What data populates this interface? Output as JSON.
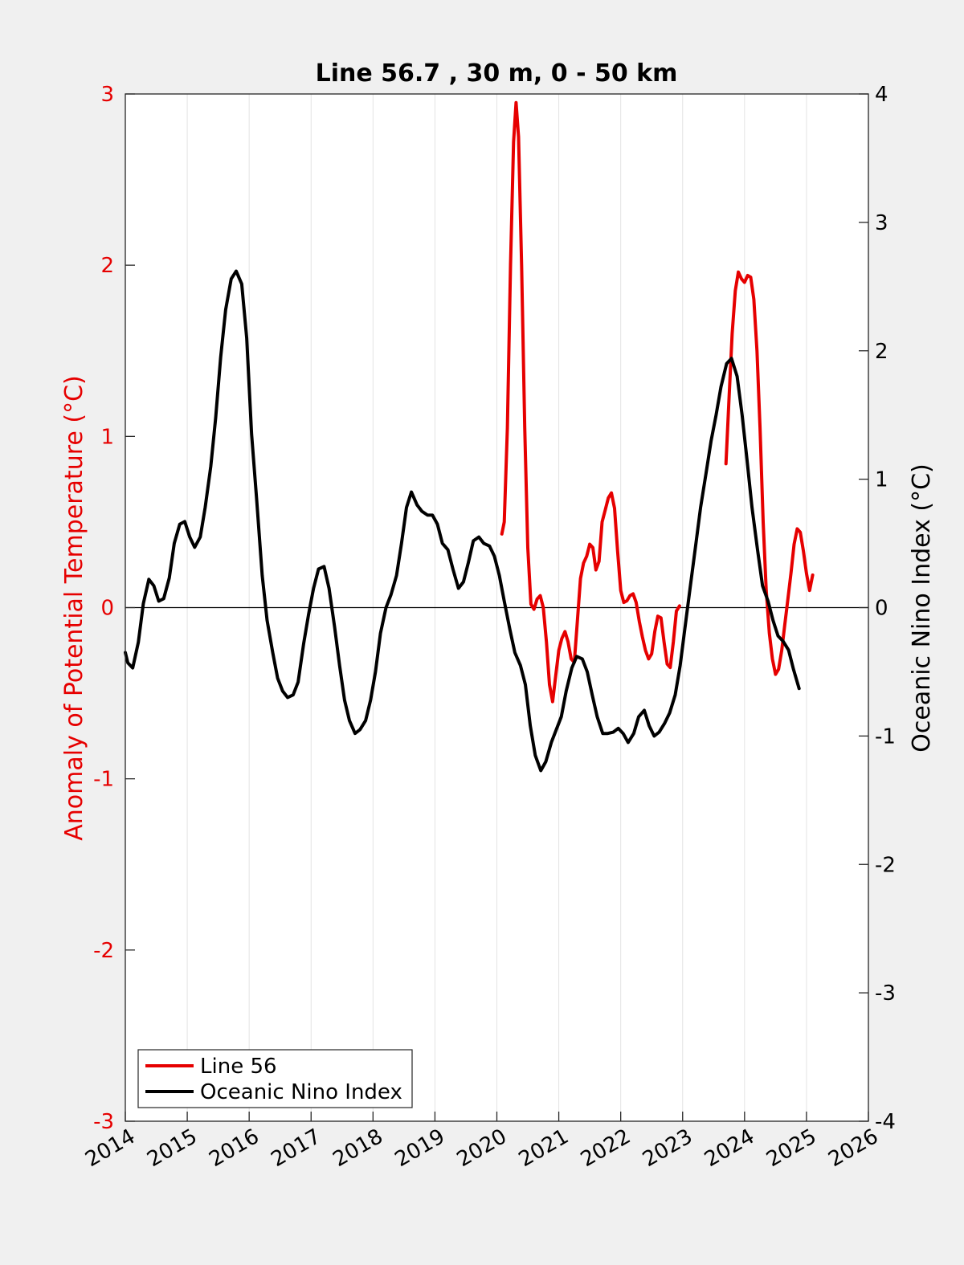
{
  "chart_data": {
    "type": "line",
    "title": "Line 56.7 , 30 m, 0 - 50 km",
    "ylabel_left": "Anomaly of Potential Temperature (°C)",
    "ylabel_right": "Oceanic Nino Index (°C)",
    "xlim": [
      2014,
      2026
    ],
    "ylim_left": [
      -3,
      3
    ],
    "ylim_right": [
      -4,
      4
    ],
    "x_ticks": [
      "2014",
      "2015",
      "2016",
      "2017",
      "2018",
      "2019",
      "2020",
      "2021",
      "2022",
      "2023",
      "2024",
      "2025",
      "2026"
    ],
    "y_ticks_left": [
      "-3",
      "-2",
      "-1",
      "0",
      "1",
      "2",
      "3"
    ],
    "y_ticks_right": [
      "-4",
      "-3",
      "-2",
      "-1",
      "0",
      "1",
      "2",
      "3",
      "4"
    ],
    "grid": "vertical",
    "zero_line": true,
    "legend_position": "bottom-left",
    "colors": {
      "line56": "#e60000",
      "oni": "#000000",
      "left_axis": "#e60000",
      "right_axis": "#000000"
    },
    "series": [
      {
        "name": "Line 56",
        "axis": "left",
        "segments": [
          [
            [
              2020.08,
              0.43
            ],
            [
              2020.12,
              0.5
            ],
            [
              2020.17,
              1.05
            ],
            [
              2020.22,
              2.0
            ],
            [
              2020.27,
              2.72
            ],
            [
              2020.31,
              2.95
            ],
            [
              2020.35,
              2.75
            ],
            [
              2020.4,
              2.0
            ],
            [
              2020.45,
              1.05
            ],
            [
              2020.5,
              0.35
            ],
            [
              2020.55,
              0.02
            ],
            [
              2020.6,
              -0.01
            ],
            [
              2020.65,
              0.05
            ],
            [
              2020.7,
              0.07
            ],
            [
              2020.75,
              0.0
            ],
            [
              2020.8,
              -0.2
            ],
            [
              2020.85,
              -0.45
            ],
            [
              2020.9,
              -0.55
            ],
            [
              2020.95,
              -0.4
            ],
            [
              2021.0,
              -0.25
            ],
            [
              2021.05,
              -0.18
            ],
            [
              2021.1,
              -0.14
            ],
            [
              2021.15,
              -0.2
            ],
            [
              2021.2,
              -0.3
            ],
            [
              2021.25,
              -0.32
            ],
            [
              2021.3,
              -0.08
            ],
            [
              2021.35,
              0.17
            ],
            [
              2021.4,
              0.26
            ],
            [
              2021.45,
              0.3
            ],
            [
              2021.5,
              0.37
            ],
            [
              2021.55,
              0.35
            ],
            [
              2021.6,
              0.22
            ],
            [
              2021.65,
              0.27
            ],
            [
              2021.7,
              0.5
            ],
            [
              2021.75,
              0.57
            ],
            [
              2021.8,
              0.64
            ],
            [
              2021.85,
              0.67
            ],
            [
              2021.9,
              0.58
            ],
            [
              2021.95,
              0.33
            ],
            [
              2022.0,
              0.1
            ],
            [
              2022.05,
              0.03
            ],
            [
              2022.1,
              0.04
            ],
            [
              2022.15,
              0.07
            ],
            [
              2022.2,
              0.08
            ],
            [
              2022.25,
              0.03
            ],
            [
              2022.3,
              -0.08
            ],
            [
              2022.35,
              -0.17
            ],
            [
              2022.4,
              -0.25
            ],
            [
              2022.45,
              -0.3
            ],
            [
              2022.5,
              -0.27
            ],
            [
              2022.55,
              -0.14
            ],
            [
              2022.6,
              -0.05
            ],
            [
              2022.65,
              -0.06
            ],
            [
              2022.7,
              -0.2
            ],
            [
              2022.75,
              -0.33
            ],
            [
              2022.8,
              -0.35
            ],
            [
              2022.85,
              -0.2
            ],
            [
              2022.9,
              -0.02
            ],
            [
              2022.95,
              0.01
            ]
          ],
          [
            [
              2023.7,
              0.84
            ],
            [
              2023.75,
              1.23
            ],
            [
              2023.8,
              1.6
            ],
            [
              2023.85,
              1.85
            ],
            [
              2023.9,
              1.96
            ],
            [
              2023.95,
              1.92
            ],
            [
              2024.0,
              1.9
            ],
            [
              2024.05,
              1.94
            ],
            [
              2024.1,
              1.93
            ],
            [
              2024.15,
              1.8
            ],
            [
              2024.2,
              1.5
            ],
            [
              2024.25,
              1.05
            ],
            [
              2024.3,
              0.5
            ],
            [
              2024.35,
              0.1
            ],
            [
              2024.4,
              -0.15
            ],
            [
              2024.45,
              -0.3
            ],
            [
              2024.5,
              -0.39
            ],
            [
              2024.55,
              -0.36
            ],
            [
              2024.6,
              -0.25
            ],
            [
              2024.65,
              -0.1
            ],
            [
              2024.7,
              0.05
            ],
            [
              2024.75,
              0.2
            ],
            [
              2024.8,
              0.37
            ],
            [
              2024.85,
              0.46
            ],
            [
              2024.9,
              0.44
            ],
            [
              2024.95,
              0.33
            ],
            [
              2025.0,
              0.2
            ],
            [
              2025.05,
              0.1
            ],
            [
              2025.1,
              0.19
            ]
          ]
        ]
      },
      {
        "name": "Oceanic Nino Index",
        "axis": "right",
        "segments": [
          [
            [
              2014.0,
              -0.35
            ],
            [
              2014.04,
              -0.43
            ],
            [
              2014.12,
              -0.47
            ],
            [
              2014.21,
              -0.27
            ],
            [
              2014.29,
              0.03
            ],
            [
              2014.38,
              0.22
            ],
            [
              2014.46,
              0.17
            ],
            [
              2014.54,
              0.05
            ],
            [
              2014.62,
              0.07
            ],
            [
              2014.71,
              0.23
            ],
            [
              2014.79,
              0.5
            ],
            [
              2014.88,
              0.65
            ],
            [
              2014.96,
              0.67
            ],
            [
              2015.04,
              0.55
            ],
            [
              2015.12,
              0.47
            ],
            [
              2015.21,
              0.55
            ],
            [
              2015.29,
              0.78
            ],
            [
              2015.38,
              1.1
            ],
            [
              2015.46,
              1.48
            ],
            [
              2015.54,
              1.95
            ],
            [
              2015.62,
              2.32
            ],
            [
              2015.71,
              2.56
            ],
            [
              2015.79,
              2.62
            ],
            [
              2015.88,
              2.52
            ],
            [
              2015.96,
              2.1
            ],
            [
              2016.04,
              1.35
            ],
            [
              2016.12,
              0.85
            ],
            [
              2016.21,
              0.25
            ],
            [
              2016.29,
              -0.1
            ],
            [
              2016.38,
              -0.35
            ],
            [
              2016.46,
              -0.55
            ],
            [
              2016.54,
              -0.65
            ],
            [
              2016.62,
              -0.7
            ],
            [
              2016.71,
              -0.68
            ],
            [
              2016.79,
              -0.58
            ],
            [
              2016.88,
              -0.28
            ],
            [
              2016.96,
              -0.05
            ],
            [
              2017.04,
              0.15
            ],
            [
              2017.12,
              0.3
            ],
            [
              2017.21,
              0.32
            ],
            [
              2017.29,
              0.15
            ],
            [
              2017.38,
              -0.15
            ],
            [
              2017.46,
              -0.45
            ],
            [
              2017.54,
              -0.72
            ],
            [
              2017.62,
              -0.88
            ],
            [
              2017.71,
              -0.98
            ],
            [
              2017.79,
              -0.95
            ],
            [
              2017.88,
              -0.88
            ],
            [
              2017.96,
              -0.72
            ],
            [
              2018.04,
              -0.5
            ],
            [
              2018.12,
              -0.2
            ],
            [
              2018.21,
              0.0
            ],
            [
              2018.29,
              0.1
            ],
            [
              2018.38,
              0.25
            ],
            [
              2018.46,
              0.5
            ],
            [
              2018.54,
              0.78
            ],
            [
              2018.62,
              0.9
            ],
            [
              2018.71,
              0.8
            ],
            [
              2018.79,
              0.75
            ],
            [
              2018.88,
              0.72
            ],
            [
              2018.96,
              0.72
            ],
            [
              2019.04,
              0.65
            ],
            [
              2019.12,
              0.5
            ],
            [
              2019.21,
              0.45
            ],
            [
              2019.29,
              0.3
            ],
            [
              2019.38,
              0.15
            ],
            [
              2019.46,
              0.2
            ],
            [
              2019.54,
              0.35
            ],
            [
              2019.62,
              0.52
            ],
            [
              2019.71,
              0.55
            ],
            [
              2019.79,
              0.5
            ],
            [
              2019.88,
              0.48
            ],
            [
              2019.96,
              0.4
            ],
            [
              2020.04,
              0.25
            ],
            [
              2020.12,
              0.05
            ],
            [
              2020.21,
              -0.17
            ],
            [
              2020.29,
              -0.35
            ],
            [
              2020.38,
              -0.45
            ],
            [
              2020.46,
              -0.6
            ],
            [
              2020.54,
              -0.92
            ],
            [
              2020.62,
              -1.15
            ],
            [
              2020.71,
              -1.27
            ],
            [
              2020.79,
              -1.2
            ],
            [
              2020.88,
              -1.05
            ],
            [
              2020.96,
              -0.95
            ],
            [
              2021.04,
              -0.85
            ],
            [
              2021.12,
              -0.65
            ],
            [
              2021.21,
              -0.47
            ],
            [
              2021.29,
              -0.38
            ],
            [
              2021.38,
              -0.4
            ],
            [
              2021.46,
              -0.5
            ],
            [
              2021.54,
              -0.68
            ],
            [
              2021.62,
              -0.85
            ],
            [
              2021.71,
              -0.98
            ],
            [
              2021.79,
              -0.98
            ],
            [
              2021.88,
              -0.97
            ],
            [
              2021.96,
              -0.94
            ],
            [
              2022.04,
              -0.98
            ],
            [
              2022.12,
              -1.05
            ],
            [
              2022.21,
              -0.98
            ],
            [
              2022.29,
              -0.85
            ],
            [
              2022.38,
              -0.8
            ],
            [
              2022.46,
              -0.92
            ],
            [
              2022.54,
              -1.0
            ],
            [
              2022.62,
              -0.97
            ],
            [
              2022.71,
              -0.9
            ],
            [
              2022.79,
              -0.82
            ],
            [
              2022.88,
              -0.68
            ],
            [
              2022.96,
              -0.45
            ],
            [
              2023.04,
              -0.15
            ],
            [
              2023.12,
              0.15
            ],
            [
              2023.21,
              0.48
            ],
            [
              2023.29,
              0.78
            ],
            [
              2023.38,
              1.05
            ],
            [
              2023.46,
              1.3
            ],
            [
              2023.54,
              1.5
            ],
            [
              2023.62,
              1.72
            ],
            [
              2023.71,
              1.9
            ],
            [
              2023.79,
              1.94
            ],
            [
              2023.88,
              1.8
            ],
            [
              2023.96,
              1.5
            ],
            [
              2024.04,
              1.15
            ],
            [
              2024.12,
              0.78
            ],
            [
              2024.21,
              0.45
            ],
            [
              2024.29,
              0.17
            ],
            [
              2024.38,
              0.05
            ],
            [
              2024.46,
              -0.1
            ],
            [
              2024.54,
              -0.22
            ],
            [
              2024.62,
              -0.26
            ],
            [
              2024.71,
              -0.33
            ],
            [
              2024.79,
              -0.48
            ],
            [
              2024.88,
              -0.63
            ]
          ]
        ]
      }
    ]
  }
}
